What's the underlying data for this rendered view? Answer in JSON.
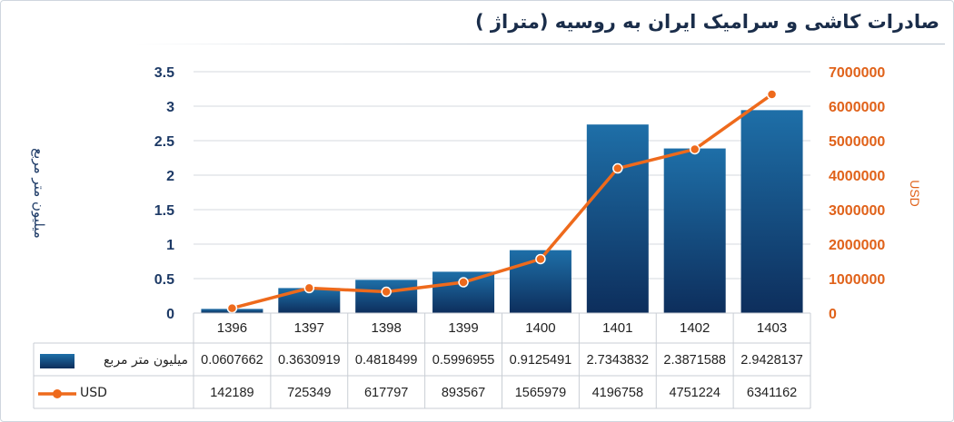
{
  "chart_data": {
    "type": "bar",
    "title": "صادرات کاشی و سرامیک ایران به روسیه (متراژ )",
    "categories": [
      "1396",
      "1397",
      "1398",
      "1399",
      "1400",
      "1401",
      "1402",
      "1403"
    ],
    "series": [
      {
        "name": "میلیون متر مربع",
        "type": "bar",
        "axis": "left",
        "values": [
          0.0607662,
          0.3630919,
          0.4818499,
          0.5996955,
          0.9125491,
          2.7343832,
          2.3871588,
          2.9428137
        ],
        "labels": [
          "0.0607662",
          "0.3630919",
          "0.4818499",
          "0.5996955",
          "0.9125491",
          "2.7343832",
          "2.3871588",
          "2.9428137"
        ]
      },
      {
        "name": "USD",
        "type": "line",
        "axis": "right",
        "values": [
          142189,
          725349,
          617797,
          893567,
          1565979,
          4196758,
          4751224,
          6341162
        ],
        "labels": [
          "142189",
          "725349",
          "617797",
          "893567",
          "1565979",
          "4196758",
          "4751224",
          "6341162"
        ]
      }
    ],
    "left_axis": {
      "label": "میلیون متر مربع",
      "ylim": [
        0,
        3.5
      ],
      "ticks": [
        "0",
        "0.5",
        "1",
        "1.5",
        "2",
        "2.5",
        "3",
        "3.5"
      ]
    },
    "right_axis": {
      "label": "USD",
      "ylim": [
        0,
        7000000
      ],
      "ticks": [
        "0",
        "1000000",
        "2000000",
        "3000000",
        "4000000",
        "5000000",
        "6000000",
        "7000000"
      ]
    },
    "grid": true,
    "legend": "data-table",
    "colors": {
      "bar_top": "#1e6fa8",
      "bar_bottom": "#0d2e5c",
      "line": "#ee6a1c",
      "left_axis": "#1d3a66",
      "right_axis": "#e0621a",
      "grid": "#d4d9df"
    }
  }
}
